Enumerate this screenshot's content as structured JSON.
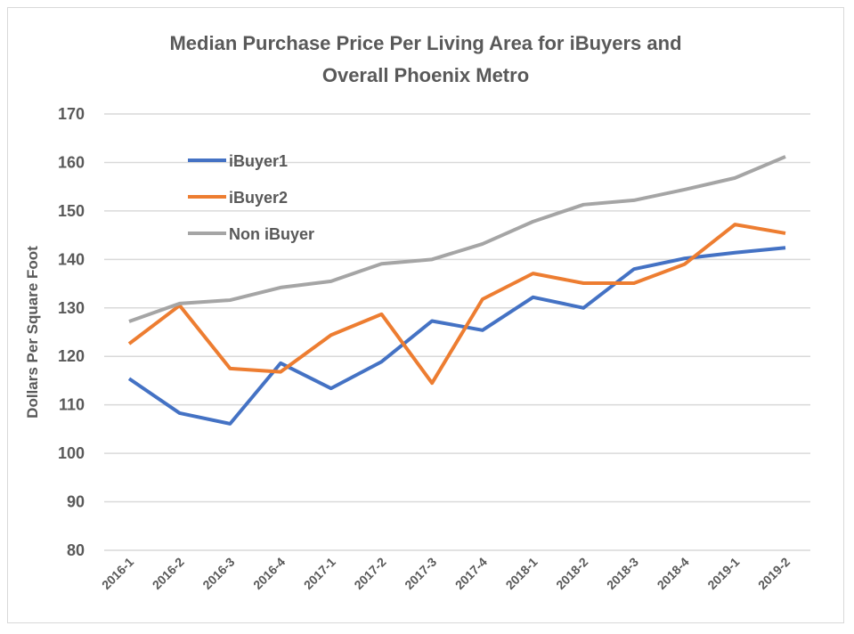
{
  "chart_data": {
    "type": "line",
    "title": "Median Purchase Price Per Living Area for iBuyers and Overall Phoenix Metro",
    "title_lines": [
      "Median Purchase Price Per Living Area for iBuyers and",
      "Overall Phoenix Metro"
    ],
    "xlabel": "",
    "ylabel": "Dollars Per Square Foot",
    "ylim": [
      80,
      170
    ],
    "yticks": [
      80,
      90,
      100,
      110,
      120,
      130,
      140,
      150,
      160,
      170
    ],
    "grid": true,
    "legend_position": "top-left",
    "categories": [
      "2016-1",
      "2016-2",
      "2016-3",
      "2016-4",
      "2017-1",
      "2017-2",
      "2017-3",
      "2017-4",
      "2018-1",
      "2018-2",
      "2018-3",
      "2018-4",
      "2019-1",
      "2019-2"
    ],
    "series": [
      {
        "name": "iBuyer1",
        "color": "#4472c4",
        "values": [
          115.4,
          108.3,
          106.1,
          118.6,
          113.4,
          118.9,
          127.3,
          125.4,
          132.2,
          130.0,
          138.0,
          140.2,
          141.4,
          142.4
        ]
      },
      {
        "name": "iBuyer2",
        "color": "#ed7d31",
        "values": [
          122.6,
          130.5,
          117.5,
          116.8,
          124.4,
          128.7,
          114.5,
          131.8,
          137.1,
          135.1,
          135.1,
          139.0,
          147.2,
          145.4
        ]
      },
      {
        "name": "Non iBuyer",
        "color": "#a5a5a5",
        "values": [
          127.2,
          130.9,
          131.6,
          134.2,
          135.5,
          139.1,
          140.0,
          143.2,
          147.8,
          151.3,
          152.2,
          154.4,
          156.8,
          161.2
        ]
      }
    ]
  }
}
